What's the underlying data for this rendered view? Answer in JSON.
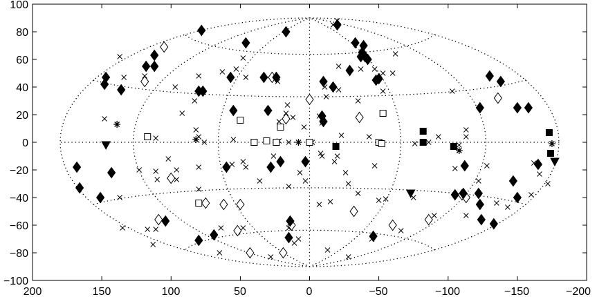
{
  "chart_data": {
    "type": "scatter",
    "projection": "hammer-aitoff-galactic",
    "title": "",
    "xlabel": "",
    "ylabel": "",
    "xlim": [
      200,
      -200
    ],
    "ylim": [
      -100,
      100
    ],
    "x_ticks": [
      200,
      150,
      100,
      50,
      0,
      -50,
      -100,
      -150,
      -200
    ],
    "y_ticks": [
      100,
      80,
      60,
      40,
      20,
      0,
      -20,
      -40,
      -60,
      -80,
      -100
    ],
    "x_tick_labels": [
      "200",
      "150",
      "100",
      "50",
      "0",
      "−50",
      "−100",
      "−150",
      "−200"
    ],
    "y_tick_labels": [
      "100",
      "80",
      "60",
      "40",
      "20",
      "0",
      "−20",
      "−40",
      "−60",
      "−80",
      "−100"
    ],
    "grid": "dotted",
    "legend": "none",
    "series": [
      {
        "marker": "filled-diamond",
        "points": [
          [
            78,
            81
          ],
          [
            17,
            80
          ],
          [
            -20,
            85
          ],
          [
            46,
            72
          ],
          [
            -33,
            72
          ],
          [
            -39,
            70
          ],
          [
            -38,
            65
          ],
          [
            -37,
            62
          ],
          [
            -42,
            60
          ],
          [
            -40,
            62
          ],
          [
            118,
            55
          ],
          [
            112,
            55
          ],
          [
            112,
            63
          ],
          [
            147,
            47
          ],
          [
            148,
            42
          ],
          [
            136,
            38
          ],
          [
            77,
            37
          ],
          [
            80,
            37
          ],
          [
            57,
            47
          ],
          [
            33,
            47
          ],
          [
            24,
            47
          ],
          [
            -10,
            44
          ],
          [
            -17,
            40
          ],
          [
            -29,
            52
          ],
          [
            -48,
            45
          ],
          [
            -50,
            46
          ],
          [
            -130,
            48
          ],
          [
            -138,
            44
          ],
          [
            -150,
            25
          ],
          [
            -123,
            25
          ],
          [
            55,
            23
          ],
          [
            30,
            23
          ],
          [
            -9,
            19
          ],
          [
            -10,
            15
          ],
          [
            -158,
            25
          ],
          [
            168,
            -18
          ],
          [
            166,
            -33
          ],
          [
            151,
            -40
          ],
          [
            143,
            -22
          ],
          [
            60,
            -18
          ],
          [
            28,
            -18
          ],
          [
            21,
            -14
          ],
          [
            3,
            -14
          ],
          [
            -112,
            -17
          ],
          [
            -111,
            -37
          ],
          [
            -122,
            -37
          ],
          [
            -123,
            -45
          ],
          [
            -124,
            -56
          ],
          [
            -147,
            -28
          ],
          [
            -150,
            -40
          ],
          [
            -165,
            -16
          ],
          [
            104,
            -57
          ],
          [
            14,
            -57
          ],
          [
            80,
            -71
          ],
          [
            69,
            -67
          ],
          [
            15,
            -69
          ],
          [
            -46,
            -68
          ],
          [
            -133,
            -59
          ],
          [
            -105,
            -38
          ]
        ]
      },
      {
        "marker": "open-diamond",
        "points": [
          [
            105,
            69
          ],
          [
            119,
            44
          ],
          [
            0,
            31
          ],
          [
            -36,
            18
          ],
          [
            -136,
            32
          ],
          [
            17,
            17
          ],
          [
            109,
            -56
          ],
          [
            100,
            -26
          ],
          [
            75,
            -44
          ],
          [
            62,
            -45
          ],
          [
            50,
            -45
          ],
          [
            -32,
            -50
          ],
          [
            -60,
            -60
          ],
          [
            -86,
            -56
          ],
          [
            -110,
            -38
          ],
          [
            -113,
            -40
          ],
          [
            52,
            -64
          ],
          [
            43,
            -80
          ],
          [
            19,
            -80
          ],
          [
            13,
            -60
          ],
          [
            27,
            47
          ]
        ]
      },
      {
        "marker": "open-square",
        "points": [
          [
            50,
            16
          ],
          [
            21,
            11
          ],
          [
            40,
            0
          ],
          [
            31,
            1
          ],
          [
            24,
            0
          ],
          [
            0,
            0
          ],
          [
            -53,
            21
          ],
          [
            -50,
            0
          ],
          [
            -52,
            -1
          ],
          [
            80,
            -44
          ],
          [
            117,
            4
          ]
        ]
      },
      {
        "marker": "filled-square",
        "points": [
          [
            -82,
            8
          ],
          [
            -82,
            0
          ],
          [
            -173,
            7
          ],
          [
            -174,
            -8
          ],
          [
            -104,
            -3
          ],
          [
            -19,
            -3
          ]
        ]
      },
      {
        "marker": "filled-triangle-down",
        "points": [
          [
            147,
            -2
          ],
          [
            -73,
            -37
          ],
          [
            -177,
            -14
          ]
        ]
      },
      {
        "marker": "asterisk",
        "points": [
          [
            139,
            13
          ],
          [
            117,
            4
          ],
          [
            82,
            2
          ],
          [
            8,
            0
          ],
          [
            -108,
            -6
          ],
          [
            -175,
            -1
          ]
        ]
      },
      {
        "marker": "cross",
        "points": [
          [
            -20,
            88
          ],
          [
            -17,
            85
          ],
          [
            48,
            61
          ],
          [
            137,
            62
          ],
          [
            134,
            47
          ],
          [
            119,
            48
          ],
          [
            80,
            48
          ],
          [
            63,
            51
          ],
          [
            53,
            53
          ],
          [
            46,
            47
          ],
          [
            23,
            44
          ],
          [
            -21,
            55
          ],
          [
            -37,
            53
          ],
          [
            -47,
            53
          ],
          [
            -53,
            50
          ],
          [
            -60,
            50
          ],
          [
            -62,
            64
          ],
          [
            -21,
            38
          ],
          [
            -11,
            40
          ],
          [
            -12,
            33
          ],
          [
            -35,
            30
          ],
          [
            -53,
            37
          ],
          [
            -103,
            37
          ],
          [
            97,
            40
          ],
          [
            83,
            30
          ],
          [
            92,
            21
          ],
          [
            16,
            27
          ],
          [
            17,
            21
          ],
          [
            12,
            18
          ],
          [
            22,
            15
          ],
          [
            4,
            11
          ],
          [
            -7,
            19
          ],
          [
            -9,
            14
          ],
          [
            148,
            17
          ],
          [
            111,
            3
          ],
          [
            82,
            9
          ],
          [
            80,
            4
          ],
          [
            76,
            0
          ],
          [
            55,
            2
          ],
          [
            22,
            1
          ],
          [
            15,
            0
          ],
          [
            -2,
            0
          ],
          [
            -23,
            5
          ],
          [
            -43,
            4
          ],
          [
            -76,
            -1
          ],
          [
            -86,
            0
          ],
          [
            -108,
            -2
          ],
          [
            -113,
            9
          ],
          [
            -93,
            4
          ],
          [
            -113,
            4
          ],
          [
            123,
            -20
          ],
          [
            110,
            -27
          ],
          [
            102,
            -12
          ],
          [
            111,
            -21
          ],
          [
            96,
            -20
          ],
          [
            80,
            -18
          ],
          [
            56,
            -16
          ],
          [
            48,
            -14
          ],
          [
            46,
            -18
          ],
          [
            36,
            -28
          ],
          [
            26,
            -10
          ],
          [
            15,
            -32
          ],
          [
            7,
            -22
          ],
          [
            3,
            -28
          ],
          [
            -8,
            -8
          ],
          [
            -26,
            -22
          ],
          [
            -28,
            -30
          ],
          [
            -47,
            -17
          ],
          [
            -105,
            -19
          ],
          [
            -122,
            -28
          ],
          [
            -128,
            -17
          ],
          [
            -162,
            -15
          ],
          [
            -166,
            -23
          ],
          [
            -172,
            -30
          ],
          [
            -160,
            -38
          ],
          [
            -143,
            -47
          ],
          [
            -135,
            -44
          ],
          [
            -113,
            -53
          ],
          [
            -75,
            -40
          ],
          [
            -90,
            -53
          ],
          [
            -55,
            -41
          ],
          [
            -50,
            -42
          ],
          [
            -35,
            -37
          ],
          [
            -20,
            -10
          ],
          [
            80,
            -34
          ],
          [
            96,
            -27
          ],
          [
            111,
            -63
          ],
          [
            117,
            -63
          ],
          [
            137,
            -40
          ],
          [
            135,
            -62
          ],
          [
            113,
            -74
          ],
          [
            64,
            -62
          ],
          [
            48,
            -62
          ],
          [
            15,
            -62
          ],
          [
            8,
            -70
          ],
          [
            -45,
            -70
          ],
          [
            -28,
            -83
          ],
          [
            65,
            -80
          ],
          [
            28,
            -83
          ],
          [
            -7,
            -45
          ],
          [
            -15,
            -43
          ],
          [
            -13,
            -78
          ],
          [
            -9,
            -10
          ],
          [
            -18,
            -14
          ],
          [
            11,
            -73
          ],
          [
            -66,
            -64
          ]
        ]
      }
    ]
  }
}
